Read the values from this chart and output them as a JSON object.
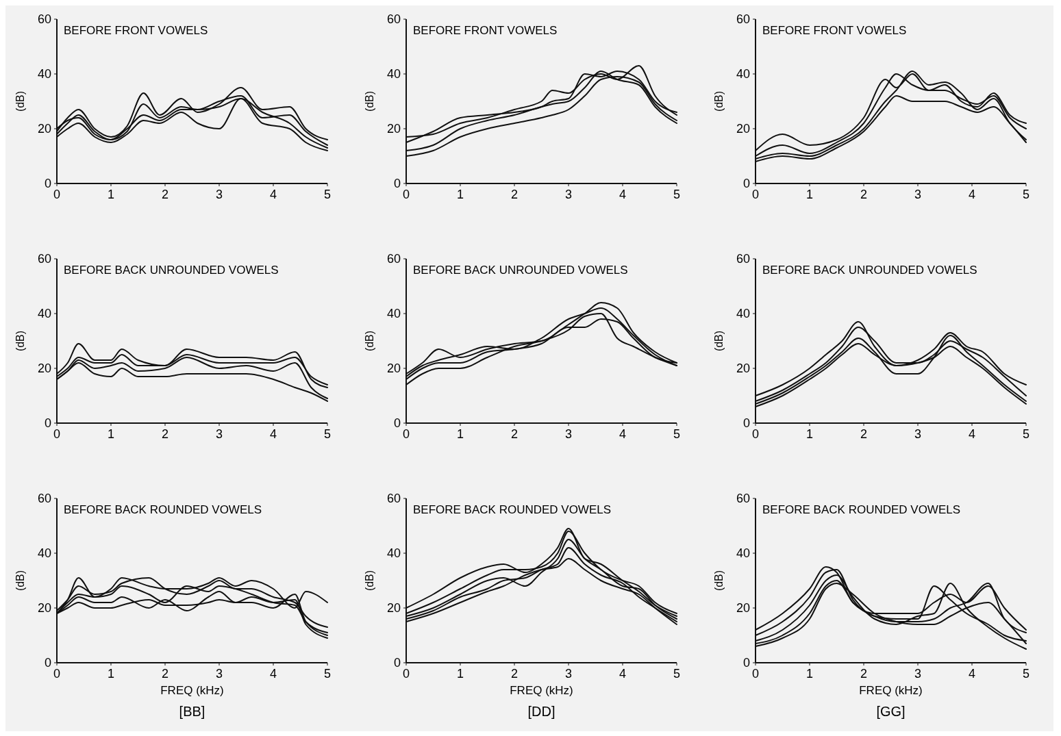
{
  "chart_data": [
    {
      "type": "line",
      "title": "BEFORE FRONT VOWELS",
      "ylabel": "(dB)",
      "xlim": [
        0,
        5
      ],
      "ylim": [
        0,
        60
      ],
      "xticks": [
        0,
        1,
        2,
        3,
        4,
        5
      ],
      "yticks": [
        0,
        20,
        40,
        60
      ],
      "series": [
        {
          "color": "#111111",
          "x": [
            0,
            0.2,
            0.4,
            0.7,
            1,
            1.3,
            1.6,
            1.9,
            2.3,
            2.6,
            3,
            3.4,
            3.8,
            4.3,
            4.6,
            5
          ],
          "values": [
            19,
            24,
            27,
            20,
            17,
            21,
            33,
            25,
            31,
            26,
            29,
            35,
            27,
            28,
            20,
            16
          ]
        },
        {
          "color": "#111111",
          "x": [
            0,
            0.2,
            0.4,
            0.7,
            1,
            1.3,
            1.6,
            1.9,
            2.3,
            2.6,
            3,
            3.4,
            3.8,
            4.3,
            4.6,
            5
          ],
          "values": [
            18,
            22,
            25,
            19,
            16,
            19,
            29,
            24,
            28,
            27,
            28,
            31,
            26,
            22,
            17,
            13
          ]
        },
        {
          "color": "#111111",
          "x": [
            0,
            0.2,
            0.4,
            0.7,
            1,
            1.3,
            1.6,
            1.9,
            2.3,
            2.6,
            3,
            3.4,
            3.8,
            4.3,
            4.6,
            5
          ],
          "values": [
            20,
            23,
            24,
            18,
            16,
            20,
            25,
            23,
            27,
            27,
            30,
            32,
            24,
            25,
            19,
            14
          ]
        },
        {
          "color": "#111111",
          "x": [
            0,
            0.2,
            0.4,
            0.7,
            1,
            1.3,
            1.6,
            1.9,
            2.3,
            2.6,
            3,
            3.4,
            3.8,
            4.3,
            4.6,
            5
          ],
          "values": [
            17,
            20,
            22,
            17,
            15,
            18,
            23,
            22,
            26,
            22,
            20,
            31,
            22,
            20,
            15,
            12
          ]
        }
      ]
    },
    {
      "type": "line",
      "title": "BEFORE FRONT VOWELS",
      "ylabel": "(dB)",
      "xlim": [
        0,
        5
      ],
      "ylim": [
        0,
        60
      ],
      "xticks": [
        0,
        1,
        2,
        3,
        4,
        5
      ],
      "yticks": [
        0,
        20,
        40,
        60
      ],
      "series": [
        {
          "color": "#111111",
          "x": [
            0,
            0.5,
            1,
            1.5,
            2,
            2.5,
            2.7,
            3,
            3.3,
            3.6,
            3.9,
            4.3,
            4.6,
            5
          ],
          "values": [
            17,
            18,
            22,
            24,
            27,
            30,
            34,
            33,
            38,
            40,
            38,
            43,
            32,
            25
          ]
        },
        {
          "color": "#111111",
          "x": [
            0,
            0.5,
            1,
            1.5,
            2,
            2.5,
            2.7,
            3,
            3.3,
            3.6,
            3.9,
            4.3,
            4.6,
            5
          ],
          "values": [
            15,
            19,
            24,
            25,
            26,
            28,
            30,
            31,
            40,
            39,
            41,
            38,
            30,
            26
          ]
        },
        {
          "color": "#111111",
          "x": [
            0,
            0.5,
            1,
            1.5,
            2,
            2.5,
            2.7,
            3,
            3.3,
            3.6,
            3.9,
            4.3,
            4.6,
            5
          ],
          "values": [
            12,
            14,
            20,
            23,
            25,
            28,
            29,
            30,
            35,
            41,
            38,
            36,
            28,
            22
          ]
        },
        {
          "color": "#111111",
          "x": [
            0,
            0.5,
            1,
            1.5,
            2,
            2.5,
            2.7,
            3,
            3.3,
            3.6,
            3.9,
            4.3,
            4.6,
            5
          ],
          "values": [
            10,
            12,
            17,
            20,
            22,
            24,
            25,
            27,
            32,
            38,
            39,
            37,
            29,
            23
          ]
        }
      ]
    },
    {
      "type": "line",
      "title": "BEFORE FRONT VOWELS",
      "ylabel": "(dB)",
      "xlim": [
        0,
        5
      ],
      "ylim": [
        0,
        60
      ],
      "xticks": [
        0,
        1,
        2,
        3,
        4,
        5
      ],
      "yticks": [
        0,
        20,
        40,
        60
      ],
      "series": [
        {
          "color": "#111111",
          "x": [
            0,
            0.5,
            1,
            1.5,
            2,
            2.4,
            2.6,
            2.9,
            3.2,
            3.5,
            3.8,
            4.1,
            4.4,
            4.7,
            5
          ],
          "values": [
            12,
            18,
            14,
            16,
            24,
            38,
            35,
            40,
            34,
            36,
            30,
            28,
            33,
            25,
            22
          ]
        },
        {
          "color": "#111111",
          "x": [
            0,
            0.5,
            1,
            1.5,
            2,
            2.4,
            2.6,
            2.9,
            3.2,
            3.5,
            3.8,
            4.1,
            4.4,
            4.7,
            5
          ],
          "values": [
            10,
            14,
            11,
            15,
            22,
            35,
            40,
            36,
            34,
            34,
            31,
            29,
            32,
            24,
            20
          ]
        },
        {
          "color": "#111111",
          "x": [
            0,
            0.5,
            1,
            1.5,
            2,
            2.4,
            2.6,
            2.9,
            3.2,
            3.5,
            3.8,
            4.1,
            4.4,
            4.7,
            5
          ],
          "values": [
            9,
            11,
            10,
            14,
            20,
            30,
            34,
            41,
            36,
            37,
            33,
            27,
            31,
            22,
            16
          ]
        },
        {
          "color": "#111111",
          "x": [
            0,
            0.5,
            1,
            1.5,
            2,
            2.4,
            2.6,
            2.9,
            3.2,
            3.5,
            3.8,
            4.1,
            4.4,
            4.7,
            5
          ],
          "values": [
            8,
            10,
            9,
            13,
            19,
            28,
            32,
            30,
            30,
            30,
            28,
            26,
            28,
            22,
            15
          ]
        }
      ]
    },
    {
      "type": "line",
      "title": "BEFORE BACK UNROUNDED VOWELS",
      "ylabel": "(dB)",
      "xlim": [
        0,
        5
      ],
      "ylim": [
        0,
        60
      ],
      "xticks": [
        0,
        1,
        2,
        3,
        4,
        5
      ],
      "yticks": [
        0,
        20,
        40,
        60
      ],
      "series": [
        {
          "color": "#111111",
          "x": [
            0,
            0.2,
            0.4,
            0.7,
            1,
            1.2,
            1.5,
            2,
            2.4,
            3,
            3.5,
            4,
            4.4,
            4.7,
            5
          ],
          "values": [
            18,
            22,
            29,
            23,
            23,
            27,
            23,
            21,
            27,
            24,
            24,
            23,
            26,
            16,
            13
          ]
        },
        {
          "color": "#111111",
          "x": [
            0,
            0.2,
            0.4,
            0.7,
            1,
            1.2,
            1.5,
            2,
            2.4,
            3,
            3.5,
            4,
            4.4,
            4.7,
            5
          ],
          "values": [
            17,
            20,
            24,
            22,
            22,
            25,
            21,
            21,
            25,
            22,
            22,
            22,
            24,
            17,
            14
          ]
        },
        {
          "color": "#111111",
          "x": [
            0,
            0.2,
            0.4,
            0.7,
            1,
            1.2,
            1.5,
            2,
            2.4,
            3,
            3.5,
            4,
            4.4,
            4.7,
            5
          ],
          "values": [
            16,
            19,
            23,
            20,
            21,
            22,
            19,
            20,
            24,
            20,
            21,
            19,
            22,
            13,
            9
          ]
        },
        {
          "color": "#111111",
          "x": [
            0,
            0.2,
            0.4,
            0.7,
            1,
            1.2,
            1.5,
            2,
            2.4,
            3,
            3.5,
            4,
            4.4,
            4.7,
            5
          ],
          "values": [
            16,
            19,
            22,
            18,
            17,
            20,
            17,
            17,
            18,
            18,
            18,
            16,
            13,
            11,
            8
          ]
        }
      ]
    },
    {
      "type": "line",
      "title": "BEFORE BACK UNROUNDED VOWELS",
      "ylabel": "(dB)",
      "xlim": [
        0,
        5
      ],
      "ylim": [
        0,
        60
      ],
      "xticks": [
        0,
        1,
        2,
        3,
        4,
        5
      ],
      "yticks": [
        0,
        20,
        40,
        60
      ],
      "series": [
        {
          "color": "#111111",
          "x": [
            0,
            0.3,
            0.6,
            1,
            1.5,
            2,
            2.5,
            3,
            3.3,
            3.6,
            3.9,
            4.2,
            4.6,
            5
          ],
          "values": [
            18,
            22,
            27,
            24,
            27,
            29,
            30,
            36,
            40,
            44,
            42,
            33,
            26,
            22
          ]
        },
        {
          "color": "#111111",
          "x": [
            0,
            0.3,
            0.6,
            1,
            1.5,
            2,
            2.5,
            3,
            3.3,
            3.6,
            3.9,
            4.2,
            4.6,
            5
          ],
          "values": [
            17,
            21,
            23,
            25,
            28,
            27,
            31,
            38,
            40,
            42,
            38,
            32,
            25,
            21
          ]
        },
        {
          "color": "#111111",
          "x": [
            0,
            0.3,
            0.6,
            1,
            1.5,
            2,
            2.5,
            3,
            3.3,
            3.6,
            3.9,
            4.2,
            4.6,
            5
          ],
          "values": [
            16,
            20,
            22,
            22,
            26,
            27,
            29,
            35,
            35,
            38,
            37,
            31,
            24,
            22
          ]
        },
        {
          "color": "#111111",
          "x": [
            0,
            0.3,
            0.6,
            1,
            1.5,
            2,
            2.5,
            3,
            3.3,
            3.6,
            3.9,
            4.2,
            4.6,
            5
          ],
          "values": [
            14,
            18,
            20,
            20,
            24,
            28,
            30,
            34,
            39,
            40,
            31,
            28,
            24,
            21
          ]
        }
      ]
    },
    {
      "type": "line",
      "title": "BEFORE BACK UNROUNDED VOWELS",
      "ylabel": "(dB)",
      "xlim": [
        0,
        5
      ],
      "ylim": [
        0,
        60
      ],
      "xticks": [
        0,
        1,
        2,
        3,
        4,
        5
      ],
      "yticks": [
        0,
        20,
        40,
        60
      ],
      "series": [
        {
          "color": "#111111",
          "x": [
            0,
            0.5,
            1,
            1.3,
            1.6,
            1.9,
            2.2,
            2.6,
            3,
            3.3,
            3.6,
            3.9,
            4.2,
            4.6,
            5
          ],
          "values": [
            10,
            14,
            20,
            25,
            30,
            37,
            28,
            21,
            23,
            27,
            33,
            28,
            26,
            18,
            14
          ]
        },
        {
          "color": "#111111",
          "x": [
            0,
            0.5,
            1,
            1.3,
            1.6,
            1.9,
            2.2,
            2.6,
            3,
            3.3,
            3.6,
            3.9,
            4.2,
            4.6,
            5
          ],
          "values": [
            8,
            12,
            18,
            22,
            28,
            35,
            30,
            22,
            22,
            25,
            30,
            27,
            24,
            17,
            10
          ]
        },
        {
          "color": "#111111",
          "x": [
            0,
            0.5,
            1,
            1.3,
            1.6,
            1.9,
            2.2,
            2.6,
            3,
            3.3,
            3.6,
            3.9,
            4.2,
            4.6,
            5
          ],
          "values": [
            7,
            11,
            17,
            21,
            26,
            31,
            26,
            18,
            18,
            24,
            32,
            26,
            21,
            14,
            8
          ]
        },
        {
          "color": "#111111",
          "x": [
            0,
            0.5,
            1,
            1.3,
            1.6,
            1.9,
            2.2,
            2.6,
            3,
            3.3,
            3.6,
            3.9,
            4.2,
            4.6,
            5
          ],
          "values": [
            6,
            10,
            16,
            20,
            25,
            29,
            25,
            21,
            22,
            24,
            28,
            24,
            20,
            13,
            7
          ]
        }
      ]
    },
    {
      "type": "line",
      "title": "BEFORE BACK ROUNDED VOWELS",
      "xlabel": "FREQ (kHz)",
      "ylabel": "(dB)",
      "xlim": [
        0,
        5
      ],
      "ylim": [
        0,
        60
      ],
      "xticks": [
        0,
        1,
        2,
        3,
        4,
        5
      ],
      "yticks": [
        0,
        20,
        40,
        60
      ],
      "annotations": [
        "[BB]"
      ],
      "series": [
        {
          "color": "#111111",
          "x": [
            0,
            0.2,
            0.4,
            0.7,
            1,
            1.2,
            1.7,
            2,
            2.4,
            2.8,
            3,
            3.3,
            3.6,
            4,
            4.4,
            4.6,
            5
          ],
          "values": [
            18,
            23,
            31,
            24,
            27,
            31,
            28,
            27,
            27,
            29,
            31,
            28,
            30,
            27,
            20,
            26,
            22
          ]
        },
        {
          "color": "#111111",
          "x": [
            0,
            0.2,
            0.4,
            0.7,
            1,
            1.2,
            1.7,
            2,
            2.4,
            2.8,
            3,
            3.3,
            3.6,
            4,
            4.4,
            4.6,
            5
          ],
          "values": [
            19,
            23,
            28,
            25,
            26,
            29,
            31,
            27,
            25,
            28,
            30,
            27,
            27,
            24,
            22,
            17,
            13
          ]
        },
        {
          "color": "#111111",
          "x": [
            0,
            0.2,
            0.4,
            0.7,
            1,
            1.2,
            1.7,
            2,
            2.4,
            2.8,
            3,
            3.3,
            3.6,
            4,
            4.4,
            4.6,
            5
          ],
          "values": [
            18,
            22,
            25,
            24,
            25,
            28,
            25,
            22,
            28,
            26,
            28,
            27,
            25,
            22,
            21,
            15,
            11
          ]
        },
        {
          "color": "#111111",
          "x": [
            0,
            0.2,
            0.4,
            0.7,
            1,
            1.2,
            1.7,
            2,
            2.4,
            2.8,
            3,
            3.3,
            3.6,
            4,
            4.4,
            4.6,
            5
          ],
          "values": [
            18,
            21,
            24,
            22,
            22,
            24,
            20,
            23,
            19,
            24,
            26,
            22,
            24,
            22,
            23,
            14,
            9
          ]
        },
        {
          "color": "#111111",
          "x": [
            0,
            0.2,
            0.4,
            0.7,
            1,
            1.2,
            1.7,
            2,
            2.4,
            2.8,
            3,
            3.3,
            3.6,
            4,
            4.4,
            4.6,
            5
          ],
          "values": [
            18,
            20,
            22,
            20,
            20,
            21,
            23,
            21,
            21,
            22,
            23,
            22,
            22,
            20,
            25,
            15,
            10
          ]
        }
      ]
    },
    {
      "type": "line",
      "title": "BEFORE BACK ROUNDED VOWELS",
      "xlabel": "FREQ (kHz)",
      "ylabel": "(dB)",
      "xlim": [
        0,
        5
      ],
      "ylim": [
        0,
        60
      ],
      "xticks": [
        0,
        1,
        2,
        3,
        4,
        5
      ],
      "yticks": [
        0,
        20,
        40,
        60
      ],
      "annotations": [
        "[DD]"
      ],
      "series": [
        {
          "color": "#111111",
          "x": [
            0,
            0.5,
            1,
            1.5,
            1.8,
            2.2,
            2.5,
            2.8,
            3,
            3.3,
            3.6,
            4,
            4.3,
            4.6,
            5
          ],
          "values": [
            20,
            25,
            31,
            35,
            36,
            33,
            36,
            42,
            49,
            38,
            36,
            30,
            26,
            21,
            17
          ]
        },
        {
          "color": "#111111",
          "x": [
            0,
            0.5,
            1,
            1.5,
            1.8,
            2.2,
            2.5,
            2.8,
            3,
            3.3,
            3.6,
            4,
            4.3,
            4.6,
            5
          ],
          "values": [
            18,
            22,
            27,
            32,
            34,
            34,
            35,
            40,
            48,
            40,
            34,
            30,
            28,
            22,
            18
          ]
        },
        {
          "color": "#111111",
          "x": [
            0,
            0.5,
            1,
            1.5,
            1.8,
            2.2,
            2.5,
            2.8,
            3,
            3.3,
            3.6,
            4,
            4.3,
            4.6,
            5
          ],
          "values": [
            17,
            20,
            25,
            30,
            31,
            28,
            33,
            38,
            45,
            38,
            34,
            28,
            27,
            21,
            16
          ]
        },
        {
          "color": "#111111",
          "x": [
            0,
            0.5,
            1,
            1.5,
            1.8,
            2.2,
            2.5,
            2.8,
            3,
            3.3,
            3.6,
            4,
            4.3,
            4.6,
            5
          ],
          "values": [
            16,
            19,
            24,
            27,
            30,
            31,
            34,
            36,
            42,
            36,
            32,
            29,
            24,
            20,
            15
          ]
        },
        {
          "color": "#111111",
          "x": [
            0,
            0.5,
            1,
            1.5,
            1.8,
            2.2,
            2.5,
            2.8,
            3,
            3.3,
            3.6,
            4,
            4.3,
            4.6,
            5
          ],
          "values": [
            15,
            18,
            22,
            26,
            28,
            32,
            34,
            35,
            38,
            34,
            30,
            27,
            25,
            20,
            14
          ]
        }
      ]
    },
    {
      "type": "line",
      "title": "BEFORE BACK ROUNDED VOWELS",
      "xlabel": "FREQ (kHz)",
      "ylabel": "(dB)",
      "xlim": [
        0,
        5
      ],
      "ylim": [
        0,
        60
      ],
      "xticks": [
        0,
        1,
        2,
        3,
        4,
        5
      ],
      "yticks": [
        0,
        20,
        40,
        60
      ],
      "annotations": [
        "[GG]"
      ],
      "series": [
        {
          "color": "#111111",
          "x": [
            0,
            0.5,
            1,
            1.3,
            1.5,
            1.8,
            2.2,
            2.6,
            3,
            3.3,
            3.6,
            3.9,
            4.3,
            4.6,
            5
          ],
          "values": [
            12,
            18,
            27,
            35,
            33,
            22,
            18,
            18,
            18,
            22,
            25,
            22,
            28,
            20,
            12
          ]
        },
        {
          "color": "#111111",
          "x": [
            0,
            0.5,
            1,
            1.3,
            1.5,
            1.8,
            2.2,
            2.6,
            3,
            3.3,
            3.6,
            3.9,
            4.3,
            4.6,
            5
          ],
          "values": [
            10,
            15,
            24,
            33,
            34,
            23,
            17,
            16,
            16,
            28,
            23,
            18,
            14,
            10,
            8
          ]
        },
        {
          "color": "#111111",
          "x": [
            0,
            0.5,
            1,
            1.3,
            1.5,
            1.8,
            2.2,
            2.6,
            3,
            3.3,
            3.6,
            3.9,
            4.3,
            4.6,
            5
          ],
          "values": [
            8,
            12,
            21,
            30,
            32,
            24,
            16,
            14,
            17,
            18,
            29,
            20,
            13,
            9,
            5
          ]
        },
        {
          "color": "#111111",
          "x": [
            0,
            0.5,
            1,
            1.3,
            1.5,
            1.8,
            2.2,
            2.6,
            3,
            3.3,
            3.6,
            3.9,
            4.3,
            4.6,
            5
          ],
          "values": [
            7,
            10,
            18,
            28,
            30,
            22,
            17,
            15,
            15,
            16,
            20,
            22,
            29,
            16,
            11
          ]
        },
        {
          "color": "#111111",
          "x": [
            0,
            0.5,
            1,
            1.3,
            1.5,
            1.8,
            2.2,
            2.6,
            3,
            3.3,
            3.6,
            3.9,
            4.3,
            4.6,
            5
          ],
          "values": [
            6,
            9,
            16,
            27,
            29,
            25,
            18,
            15,
            14,
            14,
            17,
            20,
            22,
            16,
            7
          ]
        }
      ]
    }
  ]
}
